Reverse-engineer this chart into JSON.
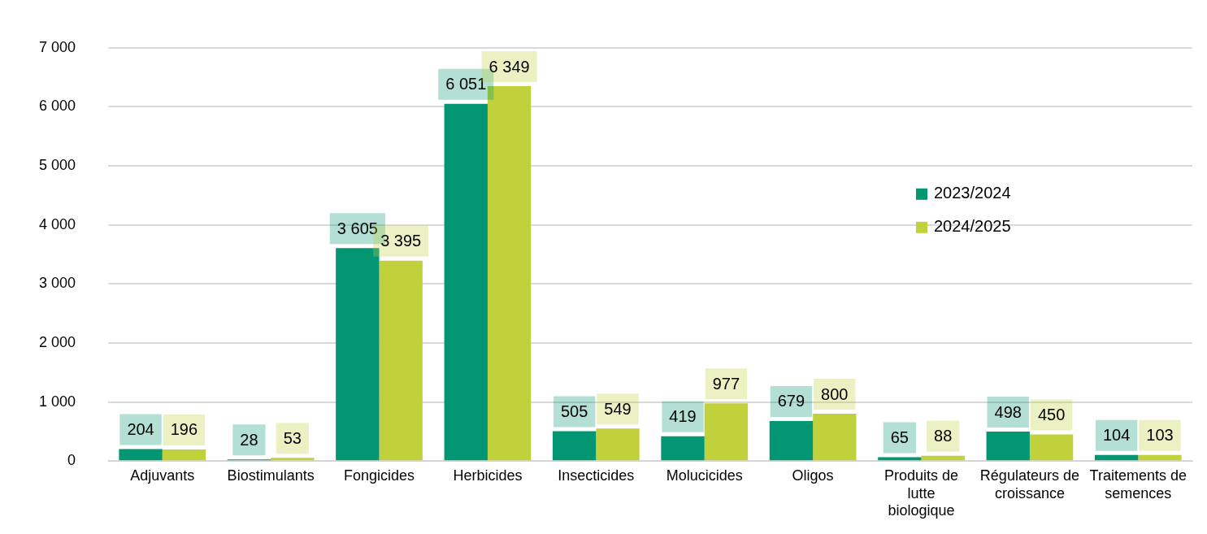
{
  "chart_data": {
    "type": "bar",
    "categories": [
      "Adjuvants",
      "Biostimulants",
      "Fongicides",
      "Herbicides",
      "Insecticides",
      "Molucicides",
      "Oligos",
      "Produits de lutte biologique",
      "Régulateurs de croissance",
      "Traitements de semences"
    ],
    "series": [
      {
        "name": "2023/2024",
        "color": "#029673",
        "values": [
          204,
          28,
          3605,
          6051,
          505,
          419,
          679,
          65,
          498,
          104
        ],
        "value_labels": [
          "204",
          "28",
          "3 605",
          "6 051",
          "505",
          "419",
          "679",
          "65",
          "498",
          "104"
        ]
      },
      {
        "name": "2024/2025",
        "color": "#c1d13b",
        "values": [
          196,
          53,
          3395,
          6349,
          549,
          977,
          800,
          88,
          450,
          103
        ],
        "value_labels": [
          "196",
          "53",
          "3 395",
          "6 349",
          "549",
          "977",
          "800",
          "88",
          "450",
          "103"
        ]
      }
    ],
    "ylim": [
      0,
      7000
    ],
    "yticks": [
      0,
      {
        "value": 1000,
        "label": "1 000"
      },
      {
        "value": 2000,
        "label": "2 000"
      },
      {
        "value": 3000,
        "label": "3 000"
      },
      {
        "value": 4000,
        "label": "4 000"
      },
      {
        "value": 5000,
        "label": "5 000"
      },
      {
        "value": 6000,
        "label": "6 000"
      },
      {
        "value": 7000,
        "label": "7 000"
      }
    ],
    "grid": "y",
    "legend": "top right"
  }
}
